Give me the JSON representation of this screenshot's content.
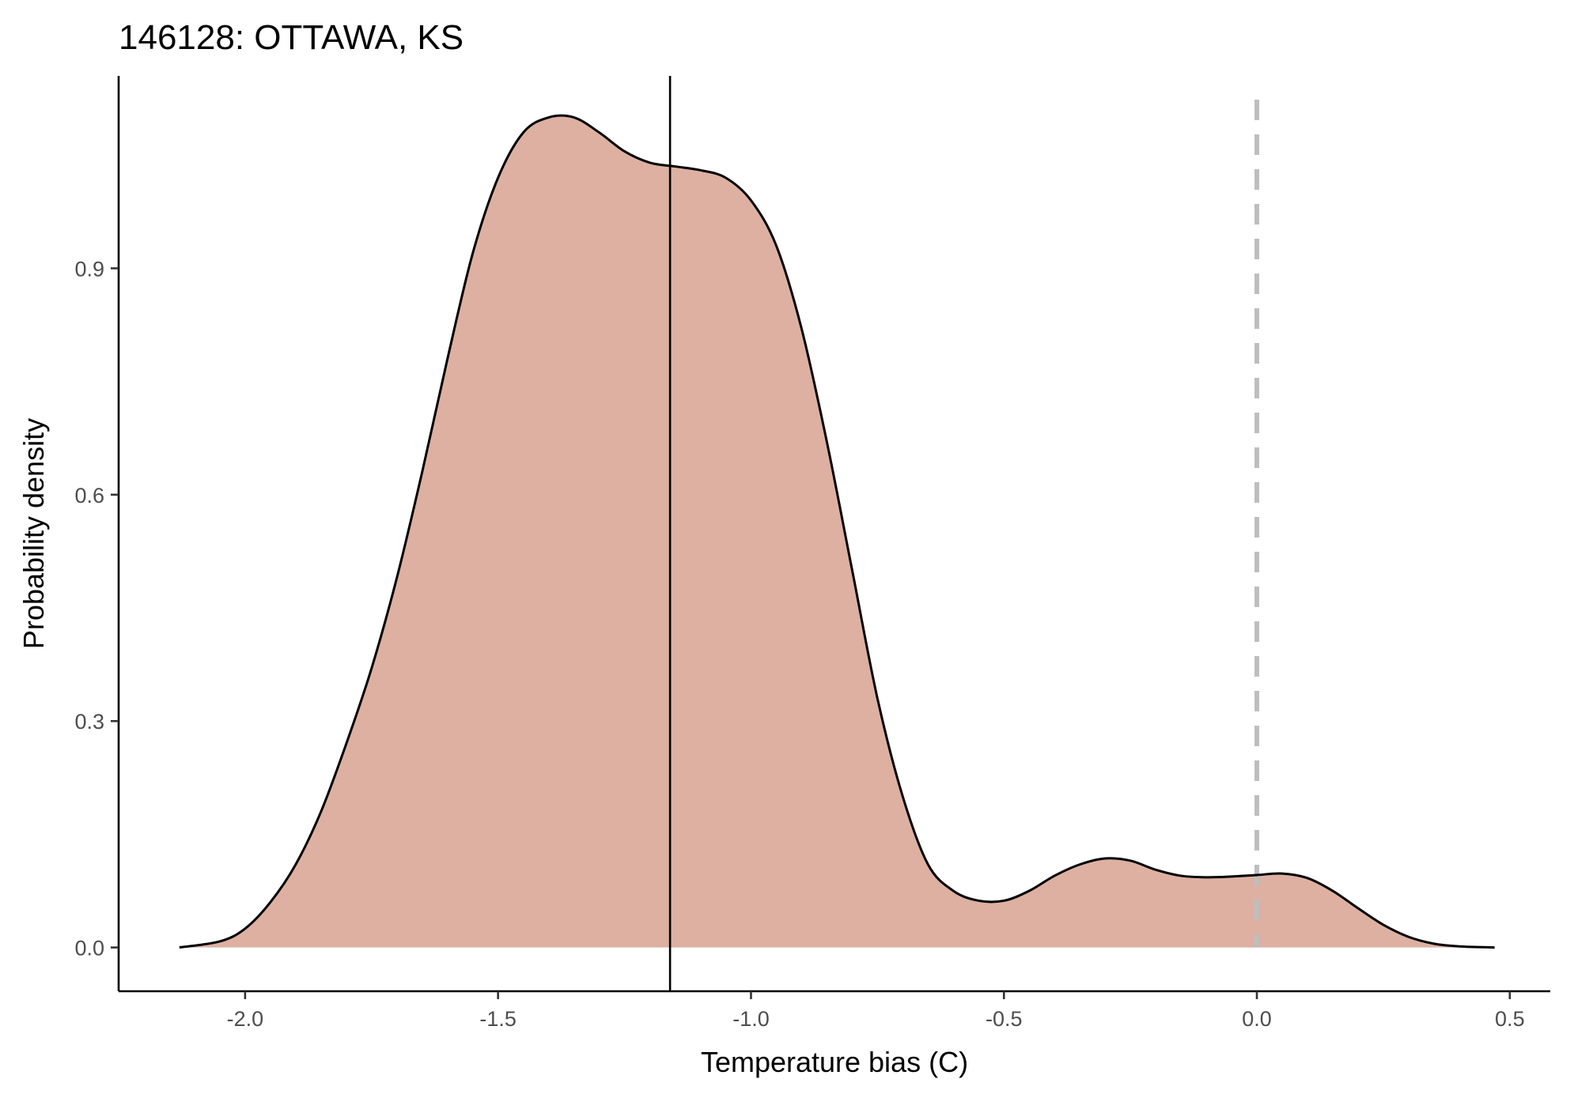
{
  "chart_data": {
    "type": "area",
    "title": "146128: OTTAWA, KS",
    "xlabel": "Temperature bias (C)",
    "ylabel": "Probability density",
    "xlim": [
      -2.25,
      0.58
    ],
    "ylim": [
      -0.058,
      1.155
    ],
    "x_ticks": [
      -2.0,
      -1.5,
      -1.0,
      -0.5,
      0.0,
      0.5
    ],
    "x_tick_labels": [
      "-2.0",
      "-1.5",
      "-1.0",
      "-0.5",
      "0.0",
      "0.5"
    ],
    "y_ticks": [
      0.0,
      0.3,
      0.6,
      0.9
    ],
    "y_tick_labels": [
      "0.0",
      "0.3",
      "0.6",
      "0.9"
    ],
    "grid": false,
    "series": [
      {
        "x": [
          -2.13,
          -2.05,
          -2.0,
          -1.95,
          -1.9,
          -1.85,
          -1.8,
          -1.75,
          -1.7,
          -1.65,
          -1.6,
          -1.55,
          -1.5,
          -1.45,
          -1.4,
          -1.35,
          -1.3,
          -1.25,
          -1.2,
          -1.15,
          -1.1,
          -1.05,
          -1.0,
          -0.95,
          -0.9,
          -0.85,
          -0.8,
          -0.75,
          -0.7,
          -0.65,
          -0.6,
          -0.55,
          -0.5,
          -0.45,
          -0.4,
          -0.35,
          -0.3,
          -0.25,
          -0.2,
          -0.15,
          -0.1,
          -0.05,
          0.0,
          0.05,
          0.1,
          0.15,
          0.2,
          0.25,
          0.3,
          0.35,
          0.4,
          0.47
        ],
        "y": [
          0.0,
          0.008,
          0.025,
          0.06,
          0.11,
          0.18,
          0.27,
          0.37,
          0.49,
          0.63,
          0.78,
          0.92,
          1.02,
          1.08,
          1.1,
          1.1,
          1.08,
          1.055,
          1.04,
          1.035,
          1.03,
          1.02,
          0.99,
          0.93,
          0.82,
          0.67,
          0.5,
          0.33,
          0.2,
          0.11,
          0.075,
          0.062,
          0.062,
          0.075,
          0.095,
          0.11,
          0.118,
          0.115,
          0.103,
          0.095,
          0.093,
          0.094,
          0.096,
          0.098,
          0.092,
          0.075,
          0.052,
          0.03,
          0.014,
          0.005,
          0.0015,
          0.0
        ]
      }
    ],
    "reference_lines": [
      {
        "orientation": "vertical",
        "x": -1.16,
        "style": "solid",
        "color": "#000000"
      },
      {
        "orientation": "vertical",
        "x": 0.0,
        "style": "dashed",
        "color": "#bebebe"
      }
    ],
    "fill_color": "#ddb0a2",
    "line_color": "#000000"
  }
}
